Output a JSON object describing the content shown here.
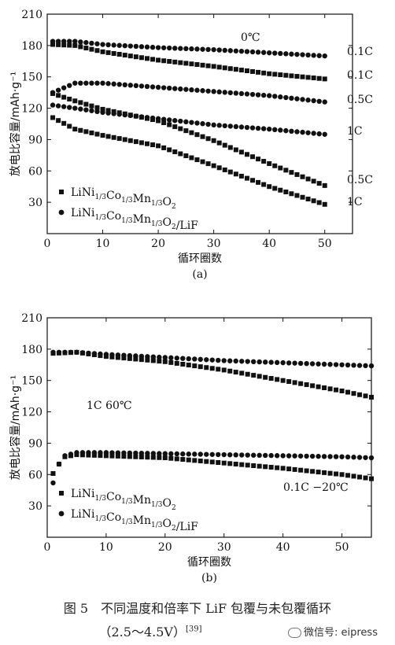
{
  "chart_data": [
    {
      "type": "scatter",
      "panel_label": "(a)",
      "xlabel": "循环圈数",
      "ylabel": "放电比容量/mAh·g⁻¹",
      "xlim": [
        0,
        55
      ],
      "ylim": [
        0,
        210
      ],
      "xticks": [
        "0",
        "10",
        "20",
        "30",
        "40",
        "50"
      ],
      "yticks": [
        "30",
        "60",
        "90",
        "120",
        "150",
        "180",
        "210"
      ],
      "annotation": "0℃",
      "legend": [
        "LiNi1/3Co1/3Mn1/3O2",
        "LiNi1/3Co1/3Mn1/3O2/LiF"
      ],
      "series": [
        {
          "name": "0.1C",
          "marker": "circle",
          "x": [
            1,
            5,
            10,
            20,
            30,
            40,
            50
          ],
          "y": [
            184,
            184,
            181,
            178,
            176,
            173,
            170
          ]
        },
        {
          "name": "0.1C",
          "marker": "square",
          "x": [
            1,
            5,
            10,
            20,
            30,
            40,
            50
          ],
          "y": [
            181,
            180,
            174,
            166,
            160,
            153,
            148
          ]
        },
        {
          "name": "0.5C",
          "marker": "circle",
          "x": [
            1,
            5,
            10,
            20,
            30,
            40,
            50
          ],
          "y": [
            135,
            144,
            144,
            140,
            136,
            132,
            126
          ]
        },
        {
          "name": "1C",
          "marker": "circle",
          "x": [
            1,
            5,
            10,
            20,
            30,
            40,
            50
          ],
          "y": [
            123,
            120,
            116,
            110,
            104,
            100,
            95
          ]
        },
        {
          "name": "0.5C",
          "marker": "square",
          "x": [
            1,
            5,
            10,
            20,
            30,
            40,
            50
          ],
          "y": [
            134,
            127,
            119,
            108,
            89,
            67,
            46
          ]
        },
        {
          "name": "1C",
          "marker": "square",
          "x": [
            1,
            5,
            10,
            20,
            30,
            40,
            50
          ],
          "y": [
            111,
            100,
            94,
            84,
            65,
            45,
            28
          ]
        }
      ]
    },
    {
      "type": "scatter",
      "panel_label": "(b)",
      "xlabel": "循环圈数",
      "ylabel": "放电比容量/mAh·g⁻¹",
      "xlim": [
        0,
        55
      ],
      "ylim": [
        0,
        210
      ],
      "xticks": [
        "0",
        "10",
        "20",
        "30",
        "40",
        "50"
      ],
      "yticks": [
        "30",
        "60",
        "90",
        "120",
        "150",
        "180",
        "210"
      ],
      "annotations": [
        "1C 60℃",
        "0.1C −20℃"
      ],
      "legend": [
        "LiNi1/3Co1/3Mn1/3O2",
        "LiNi1/3Co1/3Mn1/3O2/LiF"
      ],
      "series": [
        {
          "name": "1C 60℃ LiF",
          "marker": "circle",
          "x": [
            1,
            5,
            10,
            20,
            30,
            40,
            50,
            55
          ],
          "y": [
            177,
            177,
            175,
            172,
            169,
            167,
            165,
            164
          ]
        },
        {
          "name": "1C 60℃",
          "marker": "square",
          "x": [
            1,
            5,
            10,
            20,
            30,
            40,
            50,
            55
          ],
          "y": [
            176,
            177,
            173,
            168,
            160,
            150,
            140,
            134
          ]
        },
        {
          "name": "0.1C -20℃ LiF",
          "marker": "circle",
          "x": [
            1,
            2,
            3,
            5,
            10,
            20,
            30,
            40,
            50,
            55
          ],
          "y": [
            52,
            70,
            78,
            81,
            81,
            80,
            79,
            78,
            77,
            76
          ]
        },
        {
          "name": "0.1C -20℃",
          "marker": "square",
          "x": [
            1,
            2,
            3,
            5,
            10,
            20,
            30,
            40,
            50,
            55
          ],
          "y": [
            61,
            70,
            77,
            79,
            78,
            76,
            71,
            66,
            60,
            56
          ]
        }
      ]
    }
  ],
  "caption": {
    "line1": "图 5　不同温度和倍率下 LiF 包覆与未包覆循环",
    "line2": "（2.5～4.5V）",
    "ref": "[39]"
  },
  "watermark": "微信号: eipress"
}
